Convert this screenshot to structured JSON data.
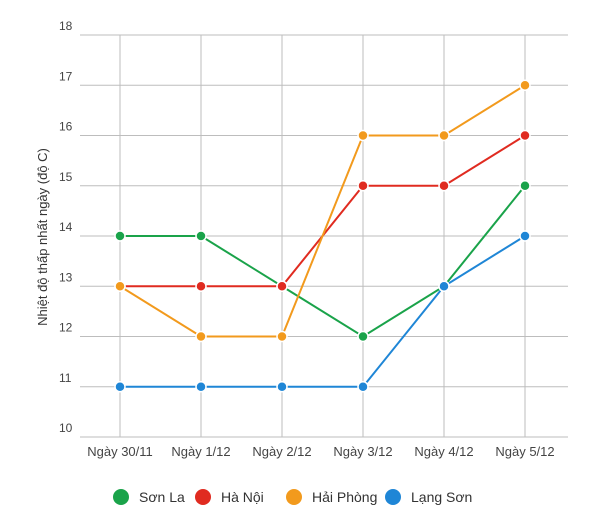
{
  "chart_data": {
    "type": "line",
    "title": "",
    "xlabel": "",
    "ylabel": "Nhiệt độ thấp nhất ngày (độ C)",
    "categories": [
      "Ngày 30/11",
      "Ngày 1/12",
      "Ngày 2/12",
      "Ngày 3/12",
      "Ngày 4/12",
      "Ngày 5/12"
    ],
    "ylim": [
      10,
      18
    ],
    "yticks": [
      10,
      11,
      12,
      13,
      14,
      15,
      16,
      17,
      18
    ],
    "grid": true,
    "legend_position": "bottom",
    "series": [
      {
        "name": "Sơn La",
        "color": "#1aa34a",
        "values": [
          14,
          14,
          13,
          12,
          13,
          15
        ]
      },
      {
        "name": "Hà Nội",
        "color": "#e02b20",
        "values": [
          13,
          13,
          13,
          15,
          15,
          16
        ]
      },
      {
        "name": "Hải Phòng",
        "color": "#f29a1d",
        "values": [
          13,
          12,
          12,
          16,
          16,
          17
        ]
      },
      {
        "name": "Lạng Sơn",
        "color": "#1f86d6",
        "values": [
          11,
          11,
          11,
          11,
          13,
          14
        ]
      }
    ]
  }
}
